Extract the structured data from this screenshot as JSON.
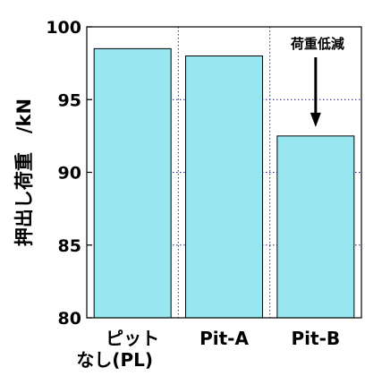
{
  "chart_data": {
    "type": "bar",
    "categories": [
      "ピット\nなし(PL)",
      "Pit-A",
      "Pit-B"
    ],
    "values": [
      98.5,
      98.0,
      92.5
    ],
    "ylabel": "押出し荷重　/kN",
    "ylim": [
      80,
      100
    ],
    "yticks": [
      80,
      85,
      90,
      95,
      100
    ],
    "grid": true,
    "legend": "none",
    "annotation": {
      "text": "荷重低減",
      "target_category": "Pit-B",
      "arrow": "down"
    },
    "colors": {
      "bar_fill": "#97E6F0",
      "bar_stroke": "#000000",
      "grid": "#1a1acc",
      "axis": "#000000"
    }
  }
}
